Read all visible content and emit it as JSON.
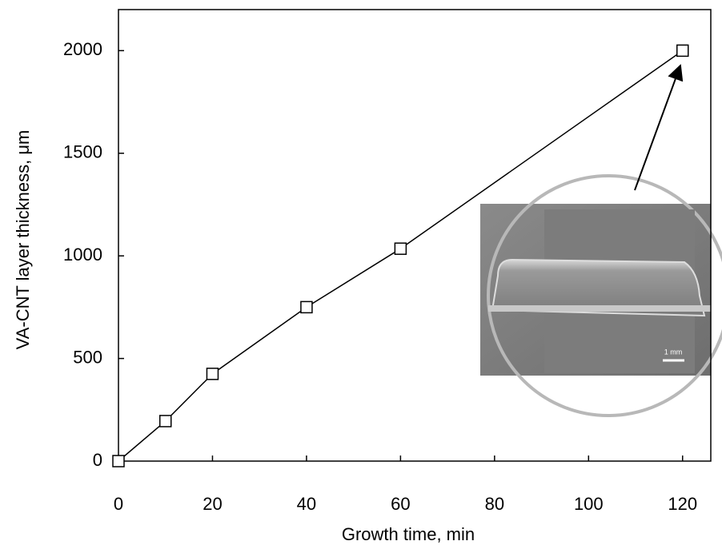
{
  "chart_data": {
    "type": "line",
    "x_label": "Growth time, min",
    "y_label": "VA-CNT layer thickness, μm",
    "x": [
      0,
      10,
      20,
      40,
      60,
      120
    ],
    "values": [
      0,
      195,
      425,
      750,
      1035,
      2000
    ],
    "color": "#000000",
    "marker": "square",
    "xlim": [
      0,
      126
    ],
    "xticks": [
      0,
      20,
      40,
      60,
      80,
      100,
      120
    ],
    "ylim": [
      0,
      2200
    ],
    "yticks": [
      0,
      500,
      1000,
      1500,
      2000
    ],
    "grid": false,
    "annotation": "1 mm"
  }
}
